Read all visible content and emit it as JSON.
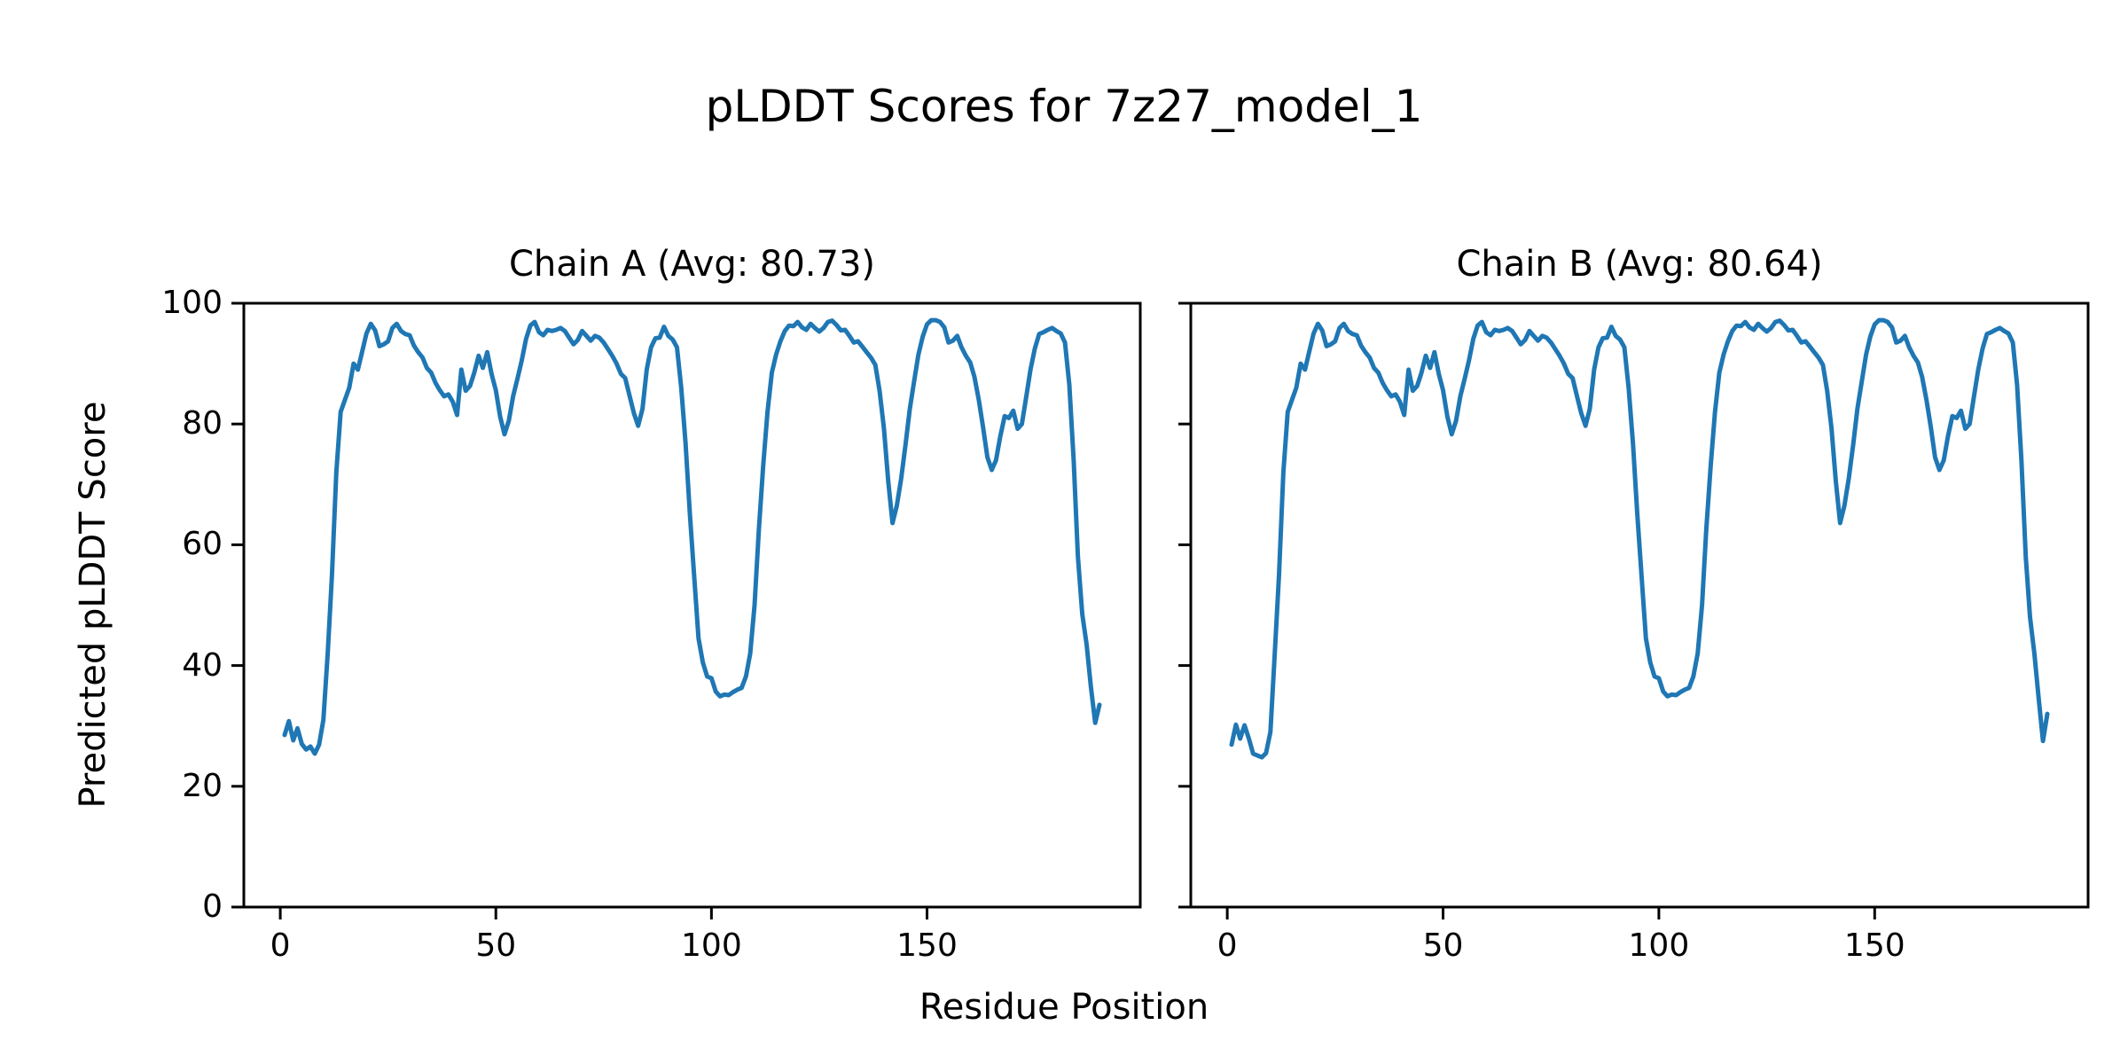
{
  "figure": {
    "suptitle": "pLDDT Scores for 7z27_model_1",
    "xlabel": "Residue Position",
    "ylabel": "Predicted pLDDT Score",
    "background": "#ffffff",
    "text_color": "#000000",
    "spine_color": "#000000",
    "line_color": "#1f77b4"
  },
  "chart_data": [
    {
      "type": "line",
      "title": "Chain A (Avg: 80.73)",
      "chain": "A",
      "avg": 80.73,
      "xlim": [
        -8.45,
        199.45
      ],
      "ylim": [
        0,
        100
      ],
      "xticks": [
        0,
        50,
        100,
        150
      ],
      "yticks": [
        0,
        20,
        40,
        60,
        80,
        100
      ],
      "grid": false,
      "legend": "none",
      "series": [
        {
          "name": "pLDDT",
          "color": "#1f77b4",
          "x_start": 1,
          "values": [
            28.5,
            30.8,
            27.6,
            29.6,
            27.0,
            26.1,
            26.6,
            25.4,
            26.9,
            31.0,
            42.0,
            55.0,
            72.0,
            82.0,
            84.0,
            86.0,
            90.0,
            89.0,
            92.0,
            95.0,
            96.6,
            95.5,
            92.9,
            93.2,
            93.7,
            95.9,
            96.6,
            95.4,
            94.9,
            94.7,
            93.0,
            91.9,
            91.0,
            89.3,
            88.5,
            86.8,
            85.6,
            84.6,
            84.9,
            83.7,
            81.5,
            89.0,
            85.5,
            86.3,
            88.5,
            91.3,
            89.3,
            91.9,
            88.3,
            85.6,
            81.2,
            78.3,
            80.5,
            84.6,
            87.5,
            90.5,
            94.1,
            96.3,
            96.9,
            95.2,
            94.7,
            95.6,
            95.4,
            95.6,
            95.9,
            95.4,
            94.3,
            93.2,
            93.9,
            95.4,
            94.6,
            93.8,
            94.6,
            94.3,
            93.5,
            92.4,
            91.3,
            90.0,
            88.3,
            87.6,
            84.7,
            81.8,
            79.7,
            82.5,
            89.0,
            92.7,
            94.2,
            94.3,
            96.1,
            94.6,
            94.0,
            92.7,
            86.0,
            76.8,
            65.0,
            54.8,
            44.5,
            40.5,
            38.2,
            37.9,
            35.7,
            34.9,
            35.2,
            35.1,
            35.6,
            36.0,
            36.3,
            38.2,
            42.0,
            50.0,
            62.6,
            73.0,
            82.0,
            88.5,
            91.5,
            93.7,
            95.4,
            96.3,
            96.2,
            96.9,
            96.0,
            95.6,
            96.6,
            95.9,
            95.3,
            95.9,
            96.9,
            97.1,
            96.4,
            95.5,
            95.6,
            94.6,
            93.5,
            93.7,
            92.8,
            91.9,
            91.0,
            89.8,
            85.5,
            79.3,
            70.5,
            63.6,
            66.5,
            71.0,
            76.5,
            82.5,
            87.0,
            91.5,
            94.5,
            96.5,
            97.2,
            97.2,
            96.9,
            96.0,
            93.5,
            93.8,
            94.6,
            92.7,
            91.3,
            90.2,
            87.8,
            84.0,
            79.5,
            74.5,
            72.4,
            74.0,
            78.0,
            81.3,
            81.0,
            82.2,
            79.2,
            80.0,
            84.5,
            89.0,
            92.5,
            94.9,
            95.2,
            95.6,
            95.9,
            95.4,
            95.0,
            93.5,
            86.5,
            74.0,
            58.0,
            48.5,
            43.5,
            36.5,
            30.5,
            33.5
          ]
        }
      ]
    },
    {
      "type": "line",
      "title": "Chain B (Avg: 80.64)",
      "chain": "B",
      "avg": 80.64,
      "xlim": [
        -8.45,
        199.45
      ],
      "ylim": [
        0,
        100
      ],
      "xticks": [
        0,
        50,
        100,
        150
      ],
      "yticks": [
        0,
        20,
        40,
        60,
        80,
        100
      ],
      "grid": false,
      "legend": "none",
      "series": [
        {
          "name": "pLDDT",
          "color": "#1f77b4",
          "x_start": 1,
          "values": [
            26.9,
            30.2,
            27.9,
            30.1,
            27.9,
            25.4,
            25.1,
            24.8,
            25.5,
            29.0,
            42.0,
            55.0,
            72.0,
            82.0,
            84.0,
            86.0,
            90.0,
            89.0,
            92.0,
            95.0,
            96.6,
            95.5,
            92.9,
            93.2,
            93.7,
            95.9,
            96.6,
            95.4,
            94.9,
            94.7,
            93.0,
            91.9,
            91.0,
            89.3,
            88.5,
            86.8,
            85.6,
            84.6,
            84.9,
            83.7,
            81.5,
            89.0,
            85.5,
            86.3,
            88.5,
            91.3,
            89.3,
            91.9,
            88.3,
            85.6,
            81.2,
            78.3,
            80.5,
            84.6,
            87.5,
            90.5,
            94.1,
            96.3,
            96.9,
            95.2,
            94.7,
            95.6,
            95.4,
            95.6,
            95.9,
            95.4,
            94.3,
            93.2,
            93.9,
            95.4,
            94.6,
            93.8,
            94.6,
            94.3,
            93.5,
            92.4,
            91.3,
            90.0,
            88.3,
            87.6,
            84.7,
            81.8,
            79.7,
            82.5,
            89.0,
            92.7,
            94.2,
            94.3,
            96.1,
            94.6,
            94.0,
            92.7,
            86.0,
            76.8,
            65.0,
            54.8,
            44.5,
            40.5,
            38.2,
            37.9,
            35.7,
            34.9,
            35.2,
            35.1,
            35.6,
            36.0,
            36.3,
            38.2,
            42.0,
            50.0,
            62.6,
            73.0,
            82.0,
            88.5,
            91.5,
            93.7,
            95.4,
            96.3,
            96.2,
            96.9,
            96.0,
            95.6,
            96.6,
            95.9,
            95.3,
            95.9,
            96.9,
            97.1,
            96.4,
            95.5,
            95.6,
            94.6,
            93.5,
            93.7,
            92.8,
            91.9,
            91.0,
            89.8,
            85.5,
            79.3,
            70.5,
            63.6,
            66.5,
            71.0,
            76.5,
            82.5,
            87.0,
            91.5,
            94.5,
            96.5,
            97.2,
            97.2,
            96.9,
            96.0,
            93.5,
            93.8,
            94.6,
            92.7,
            91.3,
            90.2,
            87.8,
            84.0,
            79.5,
            74.5,
            72.4,
            74.0,
            78.0,
            81.3,
            81.0,
            82.2,
            79.2,
            80.0,
            84.5,
            89.0,
            92.5,
            94.9,
            95.2,
            95.6,
            95.9,
            95.4,
            95.0,
            93.5,
            86.5,
            74.0,
            58.0,
            48.0,
            42.0,
            34.5,
            27.5,
            32.0
          ]
        }
      ]
    }
  ]
}
